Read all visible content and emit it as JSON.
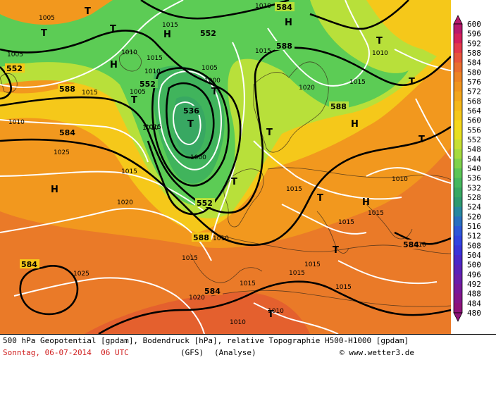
{
  "colors": {
    "ocean_orange": "#f0901e",
    "yellow": "#f5d21a",
    "lime": "#b9e03c",
    "green": "#5ccc55",
    "isobar": "#ffffff",
    "geopotential": "#000000",
    "footer_red": "#d02020"
  },
  "legend_scale": [
    "600",
    "596",
    "592",
    "588",
    "584",
    "580",
    "576",
    "572",
    "568",
    "564",
    "560",
    "556",
    "552",
    "548",
    "544",
    "540",
    "536",
    "532",
    "528",
    "524",
    "520",
    "516",
    "512",
    "508",
    "504",
    "500",
    "496",
    "492",
    "488",
    "484",
    "480"
  ],
  "legend_colors": [
    "#b8186c",
    "#d4205a",
    "#e43a4a",
    "#e8553c",
    "#ea6e2e",
    "#ed8424",
    "#f0951e",
    "#f3a61c",
    "#f5b81a",
    "#f5c81a",
    "#f6d81c",
    "#e8e020",
    "#c8e032",
    "#a6dc3e",
    "#7fd24c",
    "#5cc656",
    "#46b85e",
    "#38a862",
    "#2e9a70",
    "#2888a0",
    "#2a70c0",
    "#2e58d8",
    "#3244e0",
    "#3a34d8",
    "#4a28c8",
    "#5a22b8",
    "#6a1eaa",
    "#78199a",
    "#84168a",
    "#8e137a"
  ],
  "map_labels": {
    "pressure_systems": [
      {
        "id": "t1",
        "letter": "T"
      },
      {
        "id": "t2",
        "letter": "T"
      },
      {
        "id": "t3",
        "letter": "T"
      },
      {
        "id": "t4",
        "letter": "T"
      },
      {
        "id": "t5",
        "letter": "T"
      },
      {
        "id": "t6",
        "letter": "T"
      },
      {
        "id": "t7",
        "letter": "T"
      },
      {
        "id": "t8",
        "letter": "T"
      },
      {
        "id": "t9",
        "letter": "T"
      },
      {
        "id": "t10",
        "letter": "T"
      },
      {
        "id": "t11",
        "letter": "T"
      },
      {
        "id": "t12",
        "letter": "T"
      },
      {
        "id": "t13",
        "letter": "T"
      },
      {
        "id": "t14",
        "letter": "T"
      },
      {
        "id": "h1",
        "letter": "H"
      },
      {
        "id": "h2",
        "letter": "H"
      },
      {
        "id": "h3",
        "letter": "H"
      },
      {
        "id": "h4",
        "letter": "H"
      },
      {
        "id": "h5",
        "letter": "H"
      },
      {
        "id": "h6",
        "letter": "H"
      }
    ],
    "geopotential_labels": [
      "552",
      "552",
      "552",
      "588",
      "536",
      "584",
      "552",
      "588",
      "584",
      "588",
      "588",
      "584",
      "584"
    ],
    "isobar_labels": [
      "1005",
      "1015",
      "1010",
      "1015",
      "1005",
      "1010",
      "1010",
      "1015",
      "1015",
      "1020",
      "1015",
      "1005",
      "1010",
      "1000",
      "1005",
      "1010",
      "1015",
      "1010",
      "1000",
      "1025",
      "1015",
      "1020",
      "1010",
      "1015",
      "1015",
      "1010",
      "1015",
      "1025",
      "1015",
      "1015",
      "1020",
      "1015",
      "1010",
      "1015",
      "1015",
      "1010",
      "1010"
    ]
  },
  "footer": {
    "line1": "500 hPa Geopotential [gpdam], Bodendruck [hPa], relative Topographie H500-H1000 [gpdam]",
    "date": "Sonntag, 06-07-2014  06 UTC",
    "model": "(GFS)",
    "analysis": "(Analyse)",
    "copyright": "© www.wetter3.de"
  }
}
